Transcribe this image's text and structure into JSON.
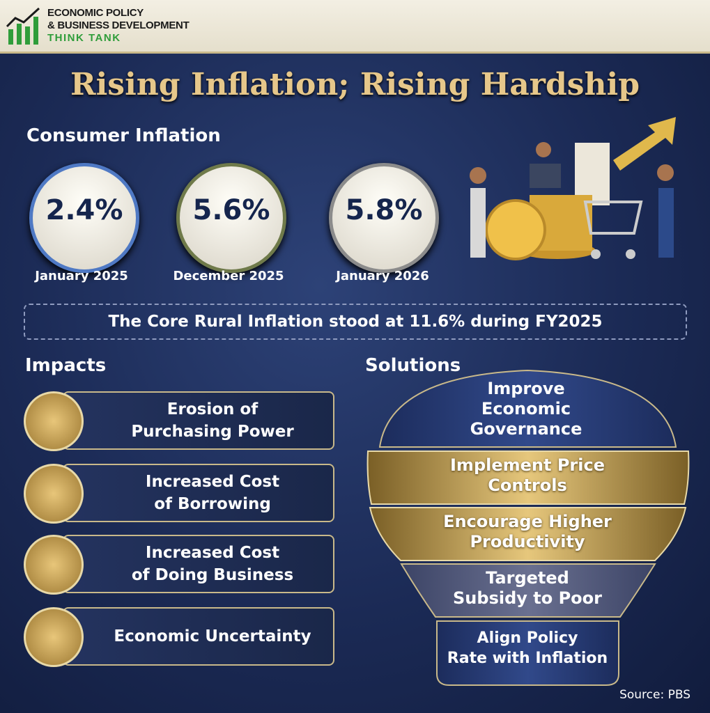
{
  "header": {
    "logo_lines": [
      "ECONOMIC POLICY",
      "& BUSINESS DEVELOPMENT",
      "THINK TANK"
    ]
  },
  "title": "Rising Inflation; Rising Hardship",
  "consumer_inflation": {
    "heading": "Consumer Inflation",
    "items": [
      {
        "value": "2.4%",
        "date": "January 2025"
      },
      {
        "value": "5.6%",
        "date": "December 2025"
      },
      {
        "value": "5.8%",
        "date": "January 2026"
      }
    ]
  },
  "core_note": "The Core Rural Inflation stood at 11.6% during FY2025",
  "impacts": {
    "heading": "Impacts",
    "items": [
      {
        "lines": [
          "Erosion of",
          "Purchasing Power"
        ]
      },
      {
        "lines": [
          "Increased Cost",
          "of Borrowing"
        ]
      },
      {
        "lines": [
          "Increased Cost",
          "of Doing Business"
        ]
      },
      {
        "lines": [
          "Economic Uncertainty"
        ]
      }
    ]
  },
  "solutions": {
    "heading": "Solutions",
    "items": [
      {
        "lines": [
          "Improve",
          "Economic",
          "Governance"
        ]
      },
      {
        "lines": [
          "Implement Price",
          "Controls"
        ]
      },
      {
        "lines": [
          "Encourage Higher",
          "Productivity"
        ]
      },
      {
        "lines": [
          "Targeted",
          "Subsidy to Poor"
        ]
      },
      {
        "lines": [
          "Align Policy",
          "Rate with Inflation"
        ]
      }
    ]
  },
  "source": "Source: PBS"
}
